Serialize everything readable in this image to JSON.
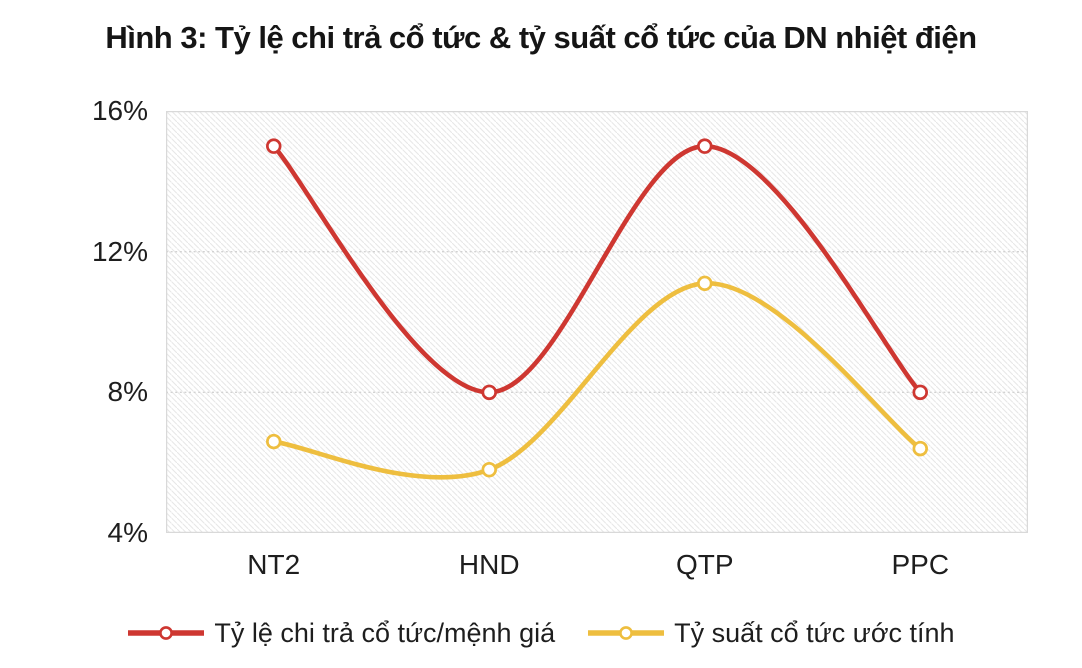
{
  "colors": {
    "red": "#ce3731",
    "yellow": "#eebe3f",
    "plot_border": "#d9d9d9",
    "gridline": "#d2d2d2",
    "hatch_line": "#e7e7e7",
    "text": "#1e1e1e"
  },
  "chart_data": {
    "type": "line",
    "title": "Hình 3: Tỷ lệ chi trả cổ tức & tỷ suất cổ tức của DN nhiệt điện",
    "categories": [
      "NT2",
      "HND",
      "QTP",
      "PPC"
    ],
    "series": [
      {
        "name": "Tỷ lệ chi trả cổ tức/mệnh giá",
        "color_key": "red",
        "values": [
          15.0,
          8.0,
          15.0,
          8.0
        ]
      },
      {
        "name": "Tỷ suất cổ tức ước tính",
        "color_key": "yellow",
        "values": [
          6.6,
          5.8,
          11.1,
          6.4
        ]
      }
    ],
    "ylim": [
      4,
      16
    ],
    "y_ticks": [
      {
        "label": "16%",
        "value": 16
      },
      {
        "label": "12%",
        "value": 12
      },
      {
        "label": "8%",
        "value": 8
      },
      {
        "label": "4%",
        "value": 4
      }
    ],
    "xlabel": "",
    "ylabel": "",
    "grid": "horizontal gridlines at 8% and 12%; hatched diagonal plot background",
    "legend_position": "bottom",
    "smooth": true,
    "marker": "open-circle"
  }
}
